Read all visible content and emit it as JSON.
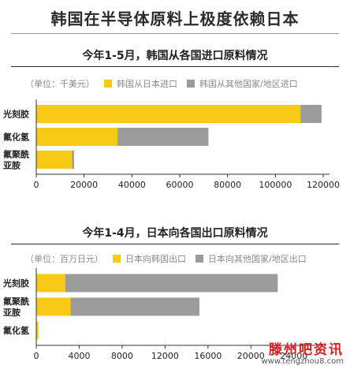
{
  "page": {
    "title": "韩国在半导体原料上极度依赖日本"
  },
  "colors": {
    "yellow": "#F7CB15",
    "gray": "#9B9B9B",
    "axis": "#333333"
  },
  "watermark": {
    "line1": "滕州吧资讯",
    "line2": "www.tengzhou8.com"
  },
  "charts": [
    {
      "title": "今年1-5月，韩国从各国进口原料情况",
      "unit": "（单位：千美元）",
      "legend": [
        "韩国从日本进口",
        "韩国从其他国家/地区进口"
      ]
    },
    {
      "title": "今年1-4月，日本向各国出口原料情况",
      "unit": "（单位：百万日元）",
      "legend": [
        "日本向韩国出口",
        "日本向其他国家/地区出口"
      ]
    }
  ],
  "chart_data": [
    {
      "type": "bar",
      "orientation": "horizontal",
      "stacked": true,
      "title": "今年1-5月，韩国从各国进口原料情况",
      "unit": "（单位：千美元）",
      "categories": [
        [
          "光刻胶"
        ],
        [
          "氟化氢"
        ],
        [
          "氟聚酰",
          "亚胺"
        ]
      ],
      "series": [
        {
          "name": "韩国从日本进口",
          "color": "#F7CB15",
          "values": [
            110500,
            34000,
            15000
          ]
        },
        {
          "name": "韩国从其他国家/地区进口",
          "color": "#9B9B9B",
          "values": [
            8800,
            38000,
            800
          ]
        }
      ],
      "xlim": [
        0,
        120000
      ],
      "xticks": [
        0,
        20000,
        40000,
        60000,
        80000,
        100000,
        120000
      ],
      "xtick_labels": [
        "0",
        "20000",
        "40000",
        "60000",
        "80000",
        "100000",
        "120000"
      ],
      "legend_position": "top-left"
    },
    {
      "type": "bar",
      "orientation": "horizontal",
      "stacked": true,
      "title": "今年1-4月，日本向各国出口原料情况",
      "unit": "（单位：百万日元）",
      "categories": [
        [
          "光刻胶"
        ],
        [
          "氟聚酰",
          "亚胺"
        ],
        [
          "氟化氢"
        ]
      ],
      "series": [
        {
          "name": "日本向韩国出口",
          "color": "#F7CB15",
          "values": [
            2700,
            3200,
            200
          ]
        },
        {
          "name": "日本向其他国家/地区出口",
          "color": "#9B9B9B",
          "values": [
            19800,
            12000,
            0
          ]
        }
      ],
      "xlim": [
        0,
        26000
      ],
      "xticks": [
        0,
        4000,
        8000,
        12000,
        16000,
        20000,
        24000
      ],
      "xtick_labels": [
        "0",
        "4000",
        "8000",
        "12000",
        "16000",
        "20000",
        "24000"
      ],
      "legend_position": "top-left"
    }
  ]
}
